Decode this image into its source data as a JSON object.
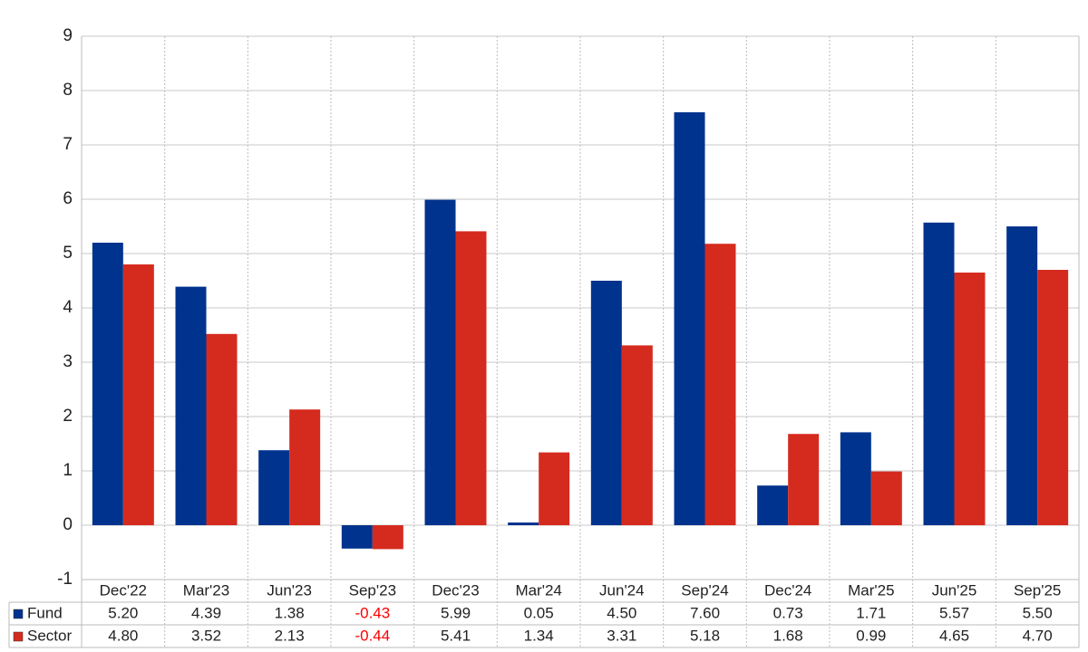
{
  "chart_data": {
    "type": "bar",
    "categories": [
      "Dec'22",
      "Mar'23",
      "Jun'23",
      "Sep'23",
      "Dec'23",
      "Mar'24",
      "Jun'24",
      "Sep'24",
      "Dec'24",
      "Mar'25",
      "Jun'25",
      "Sep'25"
    ],
    "series": [
      {
        "name": "Fund",
        "color": "#00338d",
        "values": [
          5.2,
          4.39,
          1.38,
          -0.43,
          5.99,
          0.05,
          4.5,
          7.6,
          0.73,
          1.71,
          5.57,
          5.5
        ],
        "value_labels": [
          "5.20",
          "4.39",
          "1.38",
          "-0.43",
          "5.99",
          "0.05",
          "4.50",
          "7.60",
          "0.73",
          "1.71",
          "5.57",
          "5.50"
        ]
      },
      {
        "name": "Sector",
        "color": "#d52b1e",
        "values": [
          4.8,
          3.52,
          2.13,
          -0.44,
          5.41,
          1.34,
          3.31,
          5.18,
          1.68,
          0.99,
          4.65,
          4.7
        ],
        "value_labels": [
          "4.80",
          "3.52",
          "2.13",
          "-0.44",
          "5.41",
          "1.34",
          "3.31",
          "5.18",
          "1.68",
          "0.99",
          "4.65",
          "4.70"
        ]
      }
    ],
    "ylim": [
      -1,
      9
    ],
    "yticks": [
      -1,
      0,
      1,
      2,
      3,
      4,
      5,
      6,
      7,
      8,
      9
    ],
    "grid": true,
    "negative_label_color": "#ff0000"
  }
}
